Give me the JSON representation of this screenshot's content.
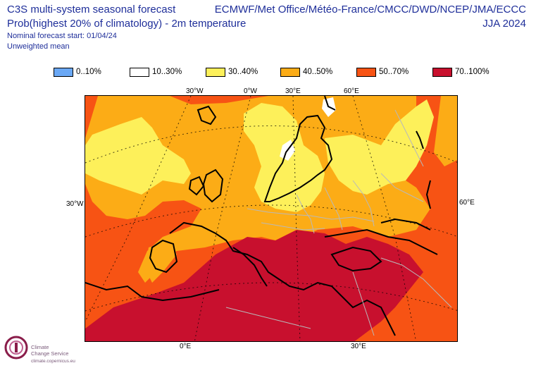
{
  "title": {
    "line1": "C3S multi-system seasonal forecast",
    "line2": "Prob(highest 20% of climatology) - 2m temperature",
    "line3": "Nominal forecast start: 01/04/24",
    "line4": "Unweighted mean"
  },
  "centres": "ECMWF/Met Office/Météo-France/CMCC/DWD/NCEP/JMA/ECCC",
  "season": "JJA 2024",
  "legend": [
    {
      "label": "0..10%",
      "color": "#6aa8f5"
    },
    {
      "label": "10..30%",
      "color": "#ffffff"
    },
    {
      "label": "30..40%",
      "color": "#fdf05a"
    },
    {
      "label": "40..50%",
      "color": "#fcac16"
    },
    {
      "label": "50..70%",
      "color": "#f75314"
    },
    {
      "label": "70..100%",
      "color": "#c8102e"
    }
  ],
  "axis_labels": {
    "top_1": "30°W",
    "top_2": "0°W",
    "top_3": "30°E",
    "top_4": "60°E",
    "left": "30°W",
    "right": "60°E",
    "bottom_1": "0°E",
    "bottom_2": "30°E"
  },
  "logo": {
    "name_line1": "Climate",
    "name_line2": "Change Service",
    "url": "climate.copernicus.eu"
  }
}
